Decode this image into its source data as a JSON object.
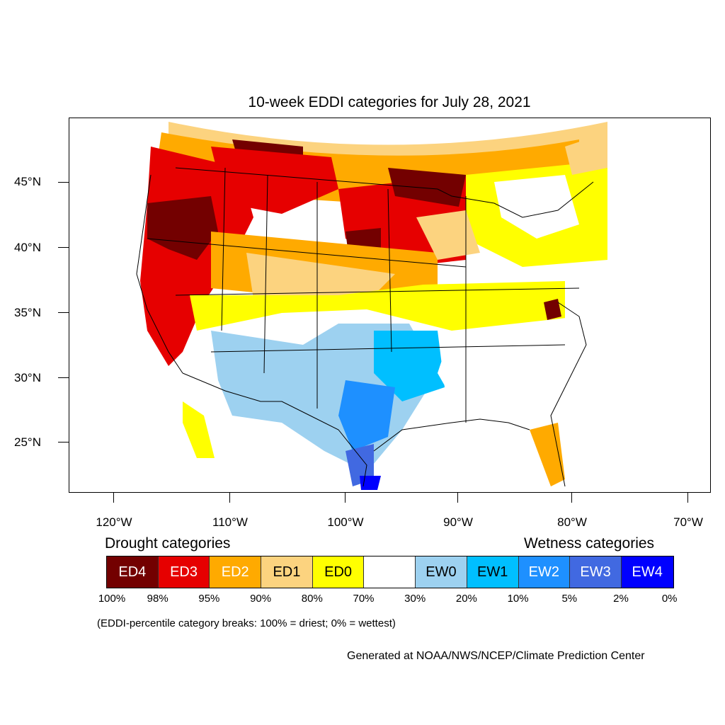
{
  "title": "10-week EDDI categories for July 28, 2021",
  "lat_labels": [
    "45°N",
    "40°N",
    "35°N",
    "30°N",
    "25°N"
  ],
  "lon_labels": [
    "120°W",
    "110°W",
    "100°W",
    "90°W",
    "80°W",
    "70°W"
  ],
  "legend": {
    "drought_heading": "Drought categories",
    "wetness_heading": "Wetness categories",
    "categories": [
      {
        "label": "ED4",
        "color": "#730000",
        "text_color": "#ffffff"
      },
      {
        "label": "ED3",
        "color": "#e60000",
        "text_color": "#ffffff"
      },
      {
        "label": "ED2",
        "color": "#ffaa00",
        "text_color": "#ffffff"
      },
      {
        "label": "ED1",
        "color": "#fcd37f",
        "text_color": "#000000"
      },
      {
        "label": "ED0",
        "color": "#ffff00",
        "text_color": "#000000"
      },
      {
        "label": "",
        "color": "#ffffff",
        "text_color": "#000000"
      },
      {
        "label": "EW0",
        "color": "#9dd1f0",
        "text_color": "#000000"
      },
      {
        "label": "EW1",
        "color": "#00bfff",
        "text_color": "#000000"
      },
      {
        "label": "EW2",
        "color": "#1e90ff",
        "text_color": "#ffffff"
      },
      {
        "label": "EW3",
        "color": "#4169e1",
        "text_color": "#ffffff"
      },
      {
        "label": "EW4",
        "color": "#0000ff",
        "text_color": "#ffffff"
      }
    ],
    "percentiles": [
      "100%",
      "98%",
      "95%",
      "90%",
      "80%",
      "70%",
      "30%",
      "20%",
      "10%",
      "5%",
      "2%",
      "0%"
    ]
  },
  "note": "(EDDI-percentile category breaks: 100% = driest; 0% = wettest)",
  "credit": "Generated at NOAA/NWS/NCEP/Climate Prediction Center"
}
